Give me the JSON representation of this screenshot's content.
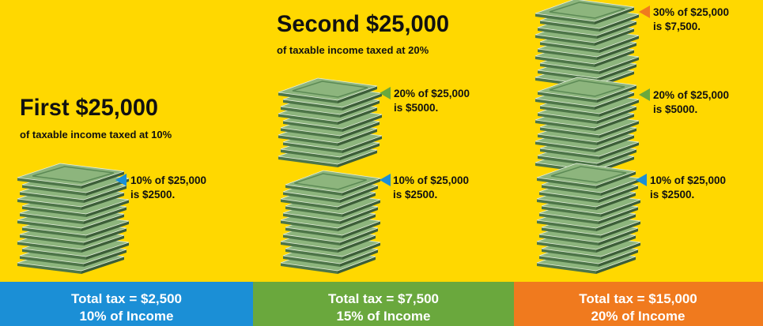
{
  "columns": [
    {
      "heading": "First $25,000",
      "subheading": "of taxable income taxed at 10%",
      "labels": [
        {
          "line1": "10% of $25,000",
          "line2": "is $2500."
        }
      ],
      "footer": {
        "total": "Total tax = $2,500",
        "percent": "10% of Income"
      }
    },
    {
      "heading": "Second $25,000",
      "subheading": "of taxable income taxed at 20%",
      "labels": [
        {
          "line1": "20% of $25,000",
          "line2": "is $5000."
        },
        {
          "line1": "10% of $25,000",
          "line2": "is $2500."
        }
      ],
      "footer": {
        "total": "Total tax = $7,500",
        "percent": "15% of Income"
      }
    },
    {
      "labels": [
        {
          "line1": "30% of $25,000",
          "line2": "is $7,500."
        },
        {
          "line1": "20% of $25,000",
          "line2": "is $5000."
        },
        {
          "line1": "10% of $25,000",
          "line2": "is $2500."
        }
      ],
      "footer": {
        "total": "Total tax = $15,000",
        "percent": "20% of Income"
      }
    }
  ]
}
